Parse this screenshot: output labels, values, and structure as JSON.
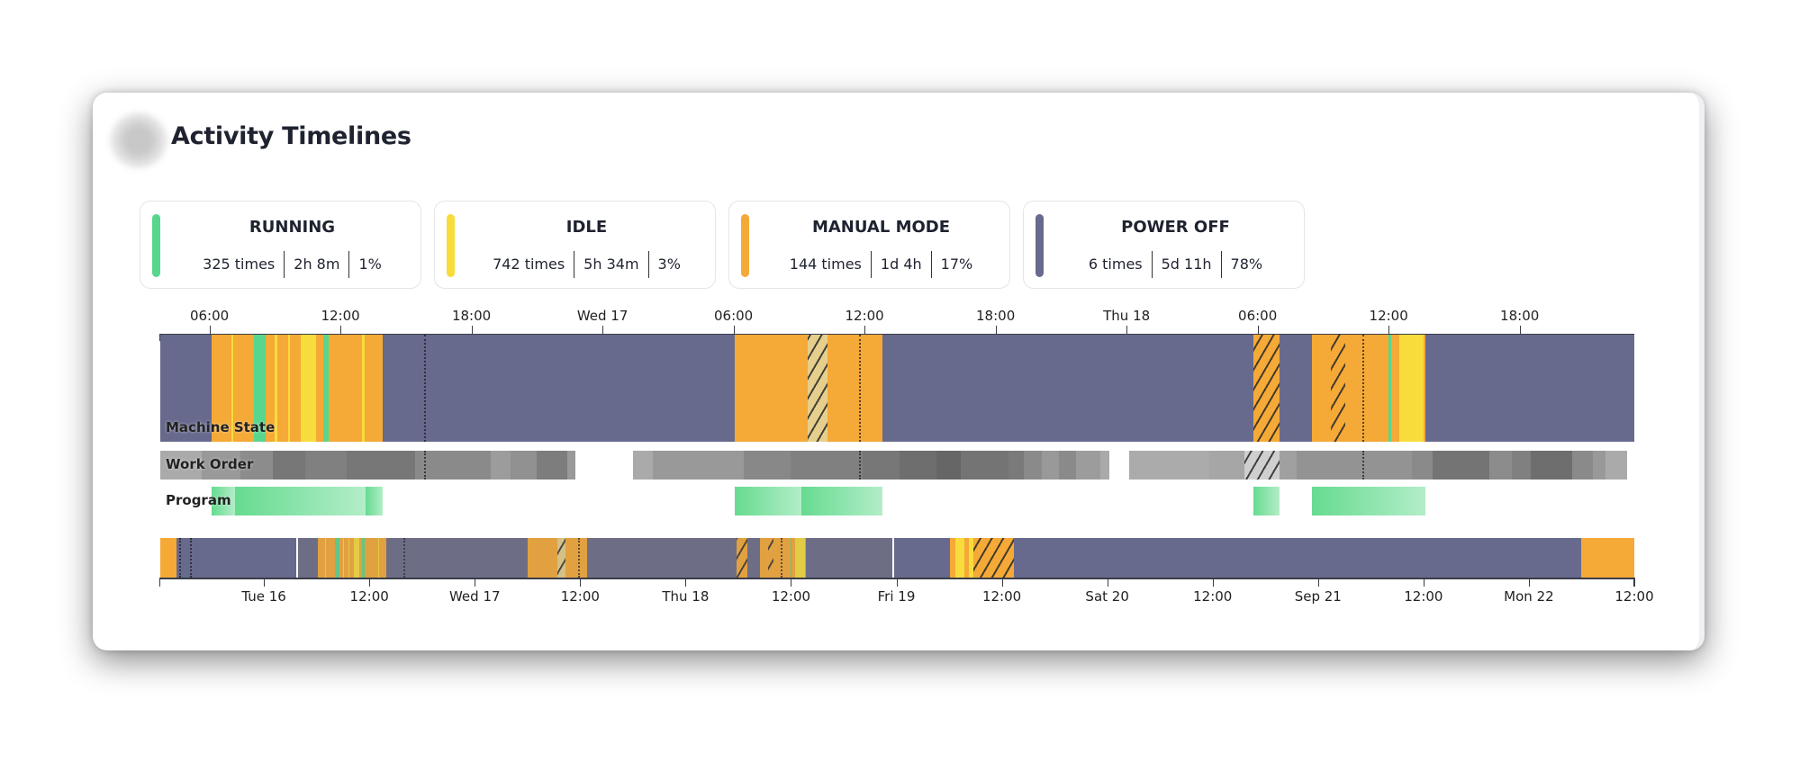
{
  "header": {
    "title": "Activity Timelines"
  },
  "colors": {
    "running": "#58d68d",
    "idle": "#f7dc3c",
    "manual": "#f5a937",
    "off": "#676a8c",
    "idle_faded": "#e6cf8c"
  },
  "summary_cards": [
    {
      "key": "running",
      "label": "RUNNING",
      "count": "325 times",
      "duration": "2h 8m",
      "percent": "1%"
    },
    {
      "key": "idle",
      "label": "IDLE",
      "count": "742 times",
      "duration": "5h 34m",
      "percent": "3%"
    },
    {
      "key": "manual",
      "label": "MANUAL MODE",
      "count": "144 times",
      "duration": "1d 4h",
      "percent": "17%"
    },
    {
      "key": "off",
      "label": "POWER OFF",
      "count": "6 times",
      "duration": "5d 11h",
      "percent": "78%"
    }
  ],
  "row_labels": {
    "machine_state": "Machine State",
    "work_order": "Work Order",
    "program": "Program"
  },
  "chart_data": {
    "type": "timeline",
    "time_unit": "hours since Tue 16 00:00",
    "main_range": [
      3.75,
      71.25
    ],
    "nav_range": [
      -11.8,
      156
    ],
    "brush": [
      3.8,
      71.6
    ],
    "main_ticks": [
      {
        "t": 6,
        "label": "06:00"
      },
      {
        "t": 12,
        "label": "12:00"
      },
      {
        "t": 18,
        "label": "18:00"
      },
      {
        "t": 24,
        "label": "Wed 17"
      },
      {
        "t": 30,
        "label": "06:00"
      },
      {
        "t": 36,
        "label": "12:00"
      },
      {
        "t": 42,
        "label": "18:00"
      },
      {
        "t": 48,
        "label": "Thu 18"
      },
      {
        "t": 54,
        "label": "06:00"
      },
      {
        "t": 60,
        "label": "12:00"
      },
      {
        "t": 66,
        "label": "18:00"
      }
    ],
    "nav_ticks": [
      {
        "t": 0,
        "label": "Tue 16"
      },
      {
        "t": 12,
        "label": "12:00"
      },
      {
        "t": 24,
        "label": "Wed 17"
      },
      {
        "t": 36,
        "label": "12:00"
      },
      {
        "t": 48,
        "label": "Thu 18"
      },
      {
        "t": 60,
        "label": "12:00"
      },
      {
        "t": 72,
        "label": "Fri 19"
      },
      {
        "t": 84,
        "label": "12:00"
      },
      {
        "t": 96,
        "label": "Sat 20"
      },
      {
        "t": 108,
        "label": "12:00"
      },
      {
        "t": 120,
        "label": "Sep 21"
      },
      {
        "t": 132,
        "label": "12:00"
      },
      {
        "t": 144,
        "label": "Mon 22"
      },
      {
        "t": 156,
        "label": "12:00"
      }
    ],
    "machine_state": [
      [
        -11.8,
        -10,
        "manual"
      ],
      [
        -10,
        6.1,
        "off"
      ],
      [
        6.1,
        7.0,
        "manual"
      ],
      [
        7.0,
        7.1,
        "idle"
      ],
      [
        7.1,
        8.04,
        "manual"
      ],
      [
        8.04,
        8.57,
        "running"
      ],
      [
        8.57,
        9.0,
        "manual"
      ],
      [
        9.0,
        9.1,
        "idle"
      ],
      [
        9.1,
        9.6,
        "manual"
      ],
      [
        9.6,
        9.7,
        "idle"
      ],
      [
        9.7,
        10.2,
        "manual"
      ],
      [
        10.2,
        10.9,
        "idle"
      ],
      [
        10.9,
        11.2,
        "manual"
      ],
      [
        11.2,
        11.45,
        "running"
      ],
      [
        11.45,
        13.0,
        "manual"
      ],
      [
        13.0,
        13.1,
        "idle"
      ],
      [
        13.1,
        13.94,
        "manual"
      ],
      [
        13.94,
        30.06,
        "off"
      ],
      [
        30.06,
        33.4,
        "manual"
      ],
      [
        33.4,
        34.3,
        "idle_faded",
        true
      ],
      [
        34.3,
        36.8,
        "manual"
      ],
      [
        36.8,
        53.8,
        "off"
      ],
      [
        53.8,
        55.0,
        "manual",
        true
      ],
      [
        55.0,
        56.5,
        "off"
      ],
      [
        56.5,
        57.35,
        "manual"
      ],
      [
        57.35,
        58.0,
        "manual",
        true
      ],
      [
        58.0,
        60.0,
        "manual"
      ],
      [
        60.0,
        60.1,
        "running"
      ],
      [
        60.1,
        60.5,
        "manual"
      ],
      [
        60.5,
        61.6,
        "idle"
      ],
      [
        61.6,
        61.7,
        "manual"
      ],
      [
        61.7,
        78.05,
        "off"
      ],
      [
        78.05,
        78.7,
        "manual"
      ],
      [
        78.7,
        79.7,
        "idle"
      ],
      [
        79.7,
        80.3,
        "manual"
      ],
      [
        80.3,
        80.8,
        "idle"
      ],
      [
        80.8,
        85.4,
        "manual",
        true
      ],
      [
        85.4,
        150,
        "off"
      ],
      [
        150,
        156,
        "manual"
      ]
    ],
    "markers": [
      -9.6,
      -8.4,
      15.83,
      35.75,
      58.8
    ],
    "work_order": [
      [
        3.75,
        5.65,
        "#aaaaaa"
      ],
      [
        5.65,
        7.4,
        "#999999"
      ],
      [
        7.4,
        8.9,
        "#8c8c8c"
      ],
      [
        8.9,
        10.4,
        "#777777"
      ],
      [
        10.4,
        12.3,
        "#808080"
      ],
      [
        12.3,
        15.4,
        "#777777"
      ],
      [
        15.4,
        18.9,
        "#8a8a8a"
      ],
      [
        18.9,
        19.8,
        "#9c9c9c"
      ],
      [
        19.8,
        21.0,
        "#919191"
      ],
      [
        21.0,
        22.4,
        "#7d7d7d"
      ],
      [
        22.4,
        22.76,
        "#999999"
      ],
      [
        25.4,
        26.3,
        "#aaaaaa"
      ],
      [
        26.3,
        30.45,
        "#999999"
      ],
      [
        30.45,
        32.6,
        "#888888"
      ],
      [
        32.6,
        35.9,
        "#808080"
      ],
      [
        35.9,
        37.6,
        "#777777"
      ],
      [
        37.6,
        39.3,
        "#6e6e6e"
      ],
      [
        39.3,
        40.4,
        "#666666"
      ],
      [
        40.4,
        42.6,
        "#747474"
      ],
      [
        42.6,
        43.3,
        "#7a7a7a"
      ],
      [
        43.3,
        44.1,
        "#8a8a8a"
      ],
      [
        44.1,
        44.9,
        "#999999"
      ],
      [
        44.9,
        45.7,
        "#8a8a8a"
      ],
      [
        45.7,
        46.8,
        "#9c9c9c"
      ],
      [
        46.8,
        47.2,
        "#aaaaaa"
      ],
      [
        48.1,
        51.8,
        "#ababab"
      ],
      [
        51.8,
        53.4,
        "#a6a6a6"
      ],
      [
        53.4,
        55.0,
        "#cfcfcf"
      ],
      [
        55.0,
        55.8,
        "#a0a0a0"
      ],
      [
        55.8,
        61.05,
        "#939393"
      ],
      [
        61.05,
        62.0,
        "#8a8a8a"
      ],
      [
        62.0,
        64.6,
        "#747474"
      ],
      [
        64.6,
        65.65,
        "#8c8c8c"
      ],
      [
        65.65,
        66.5,
        "#808080"
      ],
      [
        66.5,
        68.4,
        "#6e6e6e"
      ],
      [
        68.4,
        69.35,
        "#8a8a8a"
      ],
      [
        69.35,
        69.95,
        "#999999"
      ],
      [
        69.95,
        70.9,
        "#aaaaaa"
      ]
    ],
    "program": [
      [
        6.1,
        7.17
      ],
      [
        7.17,
        13.15
      ],
      [
        13.15,
        13.94
      ],
      [
        30.06,
        33.1
      ],
      [
        33.1,
        36.8
      ],
      [
        53.8,
        55.0
      ],
      [
        56.5,
        61.7
      ]
    ]
  }
}
